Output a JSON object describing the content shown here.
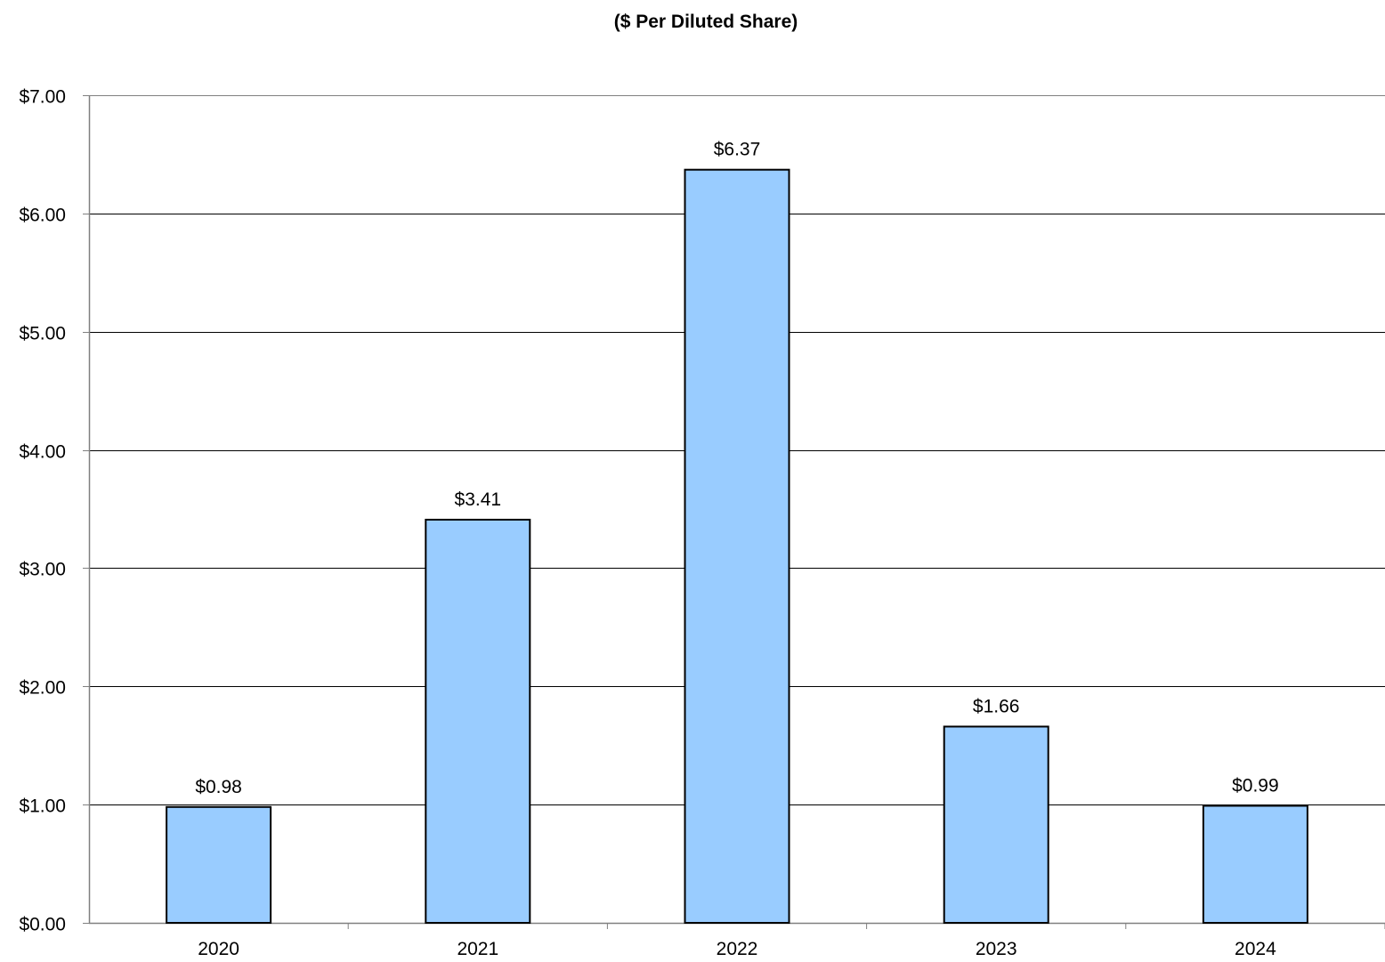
{
  "chart_data": {
    "type": "bar",
    "title": "($ Per Diluted Share)",
    "xlabel": "",
    "ylabel": "",
    "categories": [
      "2020",
      "2021",
      "2022",
      "2023",
      "2024"
    ],
    "values": [
      0.98,
      3.41,
      6.37,
      1.66,
      0.99
    ],
    "data_labels": [
      "$0.98",
      "$3.41",
      "$6.37",
      "$1.66",
      "$0.99"
    ],
    "y_ticks": [
      0,
      1,
      2,
      3,
      4,
      5,
      6,
      7
    ],
    "y_tick_labels": [
      "$0.00",
      "$1.00",
      "$2.00",
      "$3.00",
      "$4.00",
      "$5.00",
      "$6.00",
      "$7.00"
    ],
    "ylim": [
      0,
      7
    ],
    "grid": true,
    "legend": "none",
    "colors": {
      "bar_fill": "#99CCFF",
      "bar_stroke": "#000000",
      "grid": "#000000",
      "axis": "#808080"
    }
  }
}
